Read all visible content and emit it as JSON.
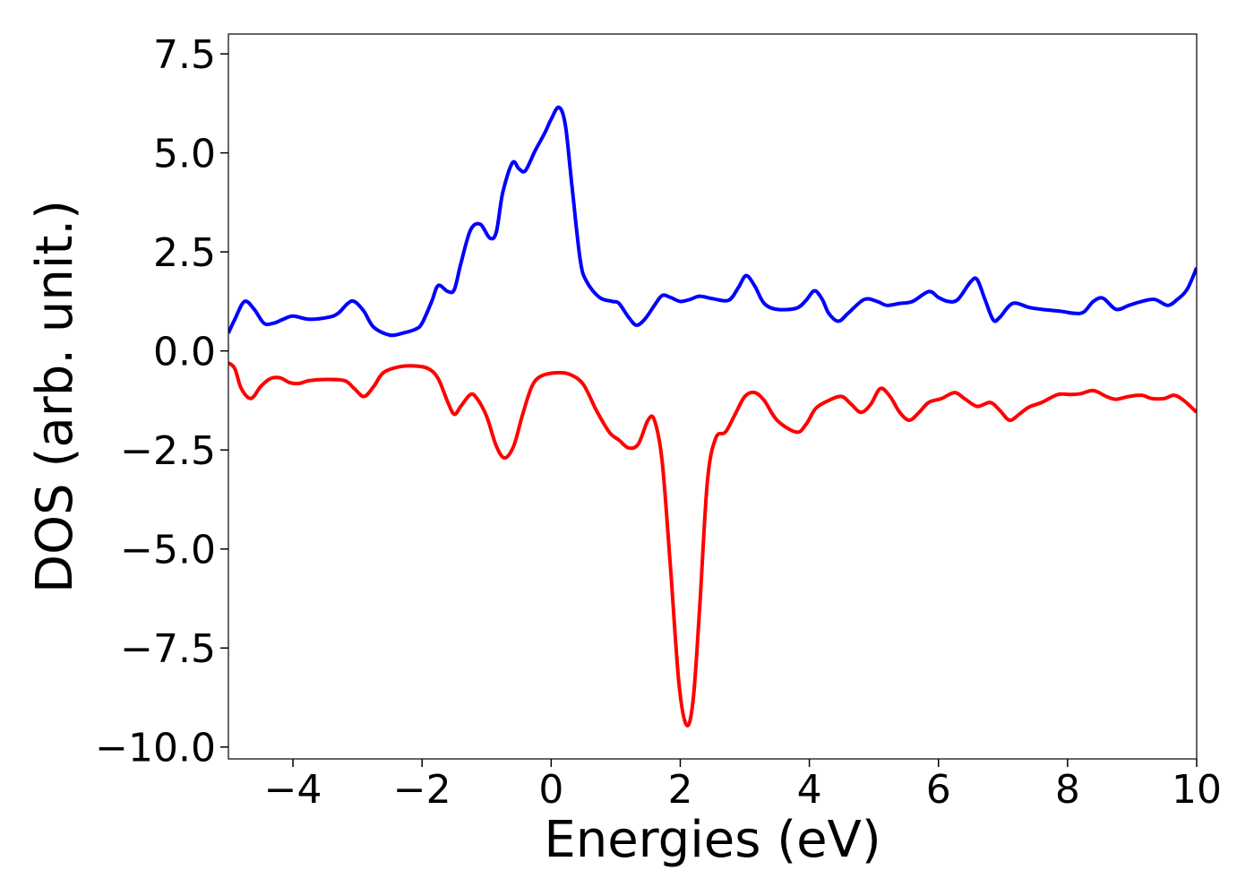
{
  "chart_data": {
    "type": "line",
    "title": "",
    "xlabel": "Energies (eV)",
    "ylabel": "DOS (arb. unit.)",
    "xlim": [
      -5,
      10
    ],
    "ylim": [
      -10.3,
      8.0
    ],
    "xticks": [
      -4,
      -2,
      0,
      2,
      4,
      6,
      8,
      10
    ],
    "xtick_labels": [
      "−4",
      "−2",
      "0",
      "2",
      "4",
      "6",
      "8",
      "10"
    ],
    "yticks": [
      7.5,
      5.0,
      2.5,
      0.0,
      -2.5,
      -5.0,
      -7.5,
      -10.0
    ],
    "ytick_labels": [
      "7.5",
      "5.0",
      "2.5",
      "0.0",
      "−2.5",
      "−5.0",
      "−7.5",
      "−10.0"
    ],
    "grid": false,
    "legend": "none",
    "series": [
      {
        "color": "#0000ff",
        "points": [
          [
            -5.0,
            0.45
          ],
          [
            -4.9,
            0.8
          ],
          [
            -4.75,
            1.25
          ],
          [
            -4.6,
            1.05
          ],
          [
            -4.45,
            0.7
          ],
          [
            -4.3,
            0.7
          ],
          [
            -4.15,
            0.8
          ],
          [
            -4.0,
            0.88
          ],
          [
            -3.75,
            0.8
          ],
          [
            -3.45,
            0.85
          ],
          [
            -3.3,
            0.95
          ],
          [
            -3.15,
            1.2
          ],
          [
            -3.05,
            1.25
          ],
          [
            -2.9,
            1.0
          ],
          [
            -2.75,
            0.6
          ],
          [
            -2.5,
            0.4
          ],
          [
            -2.3,
            0.45
          ],
          [
            -2.1,
            0.55
          ],
          [
            -2.0,
            0.7
          ],
          [
            -1.85,
            1.25
          ],
          [
            -1.75,
            1.65
          ],
          [
            -1.6,
            1.5
          ],
          [
            -1.5,
            1.55
          ],
          [
            -1.4,
            2.2
          ],
          [
            -1.25,
            3.05
          ],
          [
            -1.1,
            3.2
          ],
          [
            -0.95,
            2.85
          ],
          [
            -0.85,
            3.0
          ],
          [
            -0.75,
            4.0
          ],
          [
            -0.6,
            4.75
          ],
          [
            -0.5,
            4.6
          ],
          [
            -0.4,
            4.55
          ],
          [
            -0.25,
            5.05
          ],
          [
            -0.1,
            5.5
          ],
          [
            0.0,
            5.85
          ],
          [
            0.12,
            6.15
          ],
          [
            0.22,
            5.7
          ],
          [
            0.32,
            4.2
          ],
          [
            0.45,
            2.3
          ],
          [
            0.55,
            1.75
          ],
          [
            0.75,
            1.35
          ],
          [
            0.95,
            1.25
          ],
          [
            1.05,
            1.2
          ],
          [
            1.2,
            0.85
          ],
          [
            1.32,
            0.65
          ],
          [
            1.45,
            0.8
          ],
          [
            1.6,
            1.15
          ],
          [
            1.72,
            1.4
          ],
          [
            1.85,
            1.35
          ],
          [
            2.0,
            1.25
          ],
          [
            2.15,
            1.3
          ],
          [
            2.3,
            1.38
          ],
          [
            2.5,
            1.32
          ],
          [
            2.75,
            1.28
          ],
          [
            2.9,
            1.6
          ],
          [
            3.02,
            1.9
          ],
          [
            3.15,
            1.65
          ],
          [
            3.3,
            1.2
          ],
          [
            3.5,
            1.05
          ],
          [
            3.8,
            1.08
          ],
          [
            3.95,
            1.28
          ],
          [
            4.08,
            1.52
          ],
          [
            4.2,
            1.3
          ],
          [
            4.3,
            0.95
          ],
          [
            4.45,
            0.75
          ],
          [
            4.6,
            0.95
          ],
          [
            4.85,
            1.3
          ],
          [
            5.05,
            1.25
          ],
          [
            5.2,
            1.15
          ],
          [
            5.4,
            1.2
          ],
          [
            5.6,
            1.25
          ],
          [
            5.85,
            1.5
          ],
          [
            6.0,
            1.35
          ],
          [
            6.15,
            1.25
          ],
          [
            6.3,
            1.3
          ],
          [
            6.5,
            1.75
          ],
          [
            6.6,
            1.8
          ],
          [
            6.72,
            1.3
          ],
          [
            6.85,
            0.78
          ],
          [
            6.95,
            0.85
          ],
          [
            7.15,
            1.2
          ],
          [
            7.4,
            1.1
          ],
          [
            7.6,
            1.05
          ],
          [
            7.9,
            1.0
          ],
          [
            8.1,
            0.95
          ],
          [
            8.25,
            0.98
          ],
          [
            8.4,
            1.25
          ],
          [
            8.55,
            1.33
          ],
          [
            8.75,
            1.05
          ],
          [
            8.95,
            1.15
          ],
          [
            9.15,
            1.25
          ],
          [
            9.35,
            1.3
          ],
          [
            9.55,
            1.15
          ],
          [
            9.7,
            1.3
          ],
          [
            9.85,
            1.55
          ],
          [
            10.0,
            2.1
          ]
        ]
      },
      {
        "color": "#ff0000",
        "points": [
          [
            -5.0,
            -0.3
          ],
          [
            -4.9,
            -0.45
          ],
          [
            -4.8,
            -0.95
          ],
          [
            -4.65,
            -1.2
          ],
          [
            -4.5,
            -0.9
          ],
          [
            -4.35,
            -0.7
          ],
          [
            -4.2,
            -0.68
          ],
          [
            -4.05,
            -0.8
          ],
          [
            -3.9,
            -0.82
          ],
          [
            -3.75,
            -0.75
          ],
          [
            -3.5,
            -0.72
          ],
          [
            -3.2,
            -0.75
          ],
          [
            -3.05,
            -0.95
          ],
          [
            -2.9,
            -1.15
          ],
          [
            -2.75,
            -0.9
          ],
          [
            -2.6,
            -0.55
          ],
          [
            -2.35,
            -0.4
          ],
          [
            -2.1,
            -0.38
          ],
          [
            -1.9,
            -0.45
          ],
          [
            -1.75,
            -0.7
          ],
          [
            -1.6,
            -1.3
          ],
          [
            -1.5,
            -1.6
          ],
          [
            -1.4,
            -1.4
          ],
          [
            -1.25,
            -1.1
          ],
          [
            -1.15,
            -1.2
          ],
          [
            -1.0,
            -1.65
          ],
          [
            -0.85,
            -2.4
          ],
          [
            -0.72,
            -2.7
          ],
          [
            -0.58,
            -2.4
          ],
          [
            -0.45,
            -1.65
          ],
          [
            -0.3,
            -0.9
          ],
          [
            -0.15,
            -0.63
          ],
          [
            0.1,
            -0.55
          ],
          [
            0.3,
            -0.6
          ],
          [
            0.5,
            -0.85
          ],
          [
            0.7,
            -1.5
          ],
          [
            0.9,
            -2.05
          ],
          [
            1.05,
            -2.25
          ],
          [
            1.2,
            -2.45
          ],
          [
            1.35,
            -2.35
          ],
          [
            1.5,
            -1.75
          ],
          [
            1.6,
            -1.75
          ],
          [
            1.72,
            -2.8
          ],
          [
            1.85,
            -5.5
          ],
          [
            1.98,
            -8.4
          ],
          [
            2.1,
            -9.45
          ],
          [
            2.2,
            -8.8
          ],
          [
            2.3,
            -6.5
          ],
          [
            2.42,
            -3.3
          ],
          [
            2.55,
            -2.2
          ],
          [
            2.7,
            -2.05
          ],
          [
            2.85,
            -1.6
          ],
          [
            3.0,
            -1.15
          ],
          [
            3.15,
            -1.05
          ],
          [
            3.3,
            -1.25
          ],
          [
            3.5,
            -1.75
          ],
          [
            3.8,
            -2.05
          ],
          [
            3.95,
            -1.85
          ],
          [
            4.1,
            -1.45
          ],
          [
            4.3,
            -1.25
          ],
          [
            4.5,
            -1.15
          ],
          [
            4.65,
            -1.35
          ],
          [
            4.8,
            -1.55
          ],
          [
            4.95,
            -1.35
          ],
          [
            5.1,
            -0.95
          ],
          [
            5.25,
            -1.15
          ],
          [
            5.4,
            -1.55
          ],
          [
            5.55,
            -1.75
          ],
          [
            5.7,
            -1.55
          ],
          [
            5.85,
            -1.3
          ],
          [
            6.05,
            -1.2
          ],
          [
            6.25,
            -1.05
          ],
          [
            6.4,
            -1.2
          ],
          [
            6.6,
            -1.4
          ],
          [
            6.8,
            -1.3
          ],
          [
            6.95,
            -1.5
          ],
          [
            7.1,
            -1.75
          ],
          [
            7.25,
            -1.6
          ],
          [
            7.4,
            -1.42
          ],
          [
            7.6,
            -1.3
          ],
          [
            7.85,
            -1.1
          ],
          [
            8.05,
            -1.1
          ],
          [
            8.2,
            -1.08
          ],
          [
            8.4,
            -1.0
          ],
          [
            8.6,
            -1.15
          ],
          [
            8.75,
            -1.22
          ],
          [
            8.95,
            -1.15
          ],
          [
            9.15,
            -1.12
          ],
          [
            9.3,
            -1.2
          ],
          [
            9.5,
            -1.2
          ],
          [
            9.65,
            -1.12
          ],
          [
            9.8,
            -1.25
          ],
          [
            10.0,
            -1.55
          ]
        ]
      }
    ]
  }
}
